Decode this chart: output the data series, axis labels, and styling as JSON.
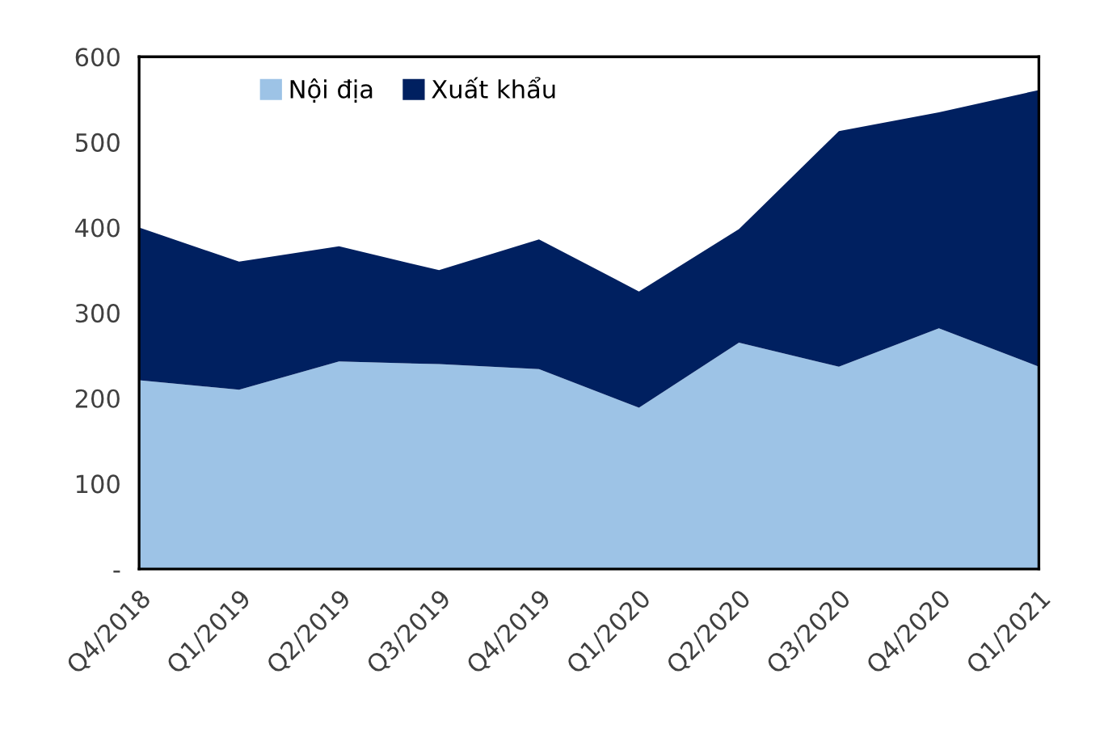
{
  "chart_data": {
    "type": "area",
    "stacked": true,
    "categories": [
      "Q4/2018",
      "Q1/2019",
      "Q2/2019",
      "Q3/2019",
      "Q4/2019",
      "Q1/2020",
      "Q2/2020",
      "Q3/2020",
      "Q4/2020",
      "Q1/2021"
    ],
    "series": [
      {
        "name": "Nội địa",
        "color": "#9dc3e6",
        "values": [
          221,
          210,
          243,
          240,
          234,
          189,
          265,
          237,
          282,
          237
        ]
      },
      {
        "name": "Xuất khẩu",
        "color": "#002060",
        "values": [
          179,
          150,
          135,
          110,
          152,
          136,
          133,
          276,
          253,
          324
        ]
      }
    ],
    "ylim": [
      0,
      600
    ],
    "yticks": [
      {
        "value": 0,
        "label": "-"
      },
      100,
      200,
      300,
      400,
      500,
      600
    ],
    "grid": false,
    "legend": "top"
  }
}
